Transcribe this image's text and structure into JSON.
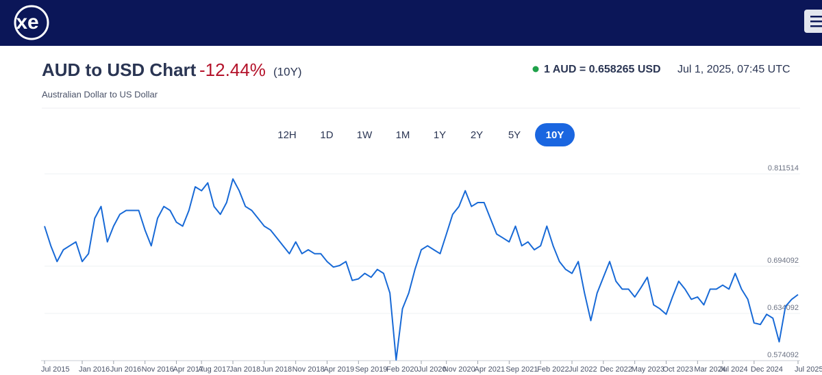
{
  "header": {
    "logo": "xe"
  },
  "title": "AUD to USD Chart",
  "change": "-12.44%",
  "period": "(10Y)",
  "subtitle": "Australian Dollar to US Dollar",
  "rate": "1 AUD = 0.658265 USD",
  "timestamp": "Jul 1, 2025, 07:45 UTC",
  "tabs": [
    {
      "label": "12H"
    },
    {
      "label": "1D"
    },
    {
      "label": "1W"
    },
    {
      "label": "1M"
    },
    {
      "label": "1Y"
    },
    {
      "label": "2Y"
    },
    {
      "label": "5Y"
    },
    {
      "label": "10Y",
      "active": true
    }
  ],
  "chart_data": {
    "type": "line",
    "color": "#1769d6",
    "grid": true,
    "x": [
      "Jul 2015",
      null,
      null,
      null,
      null,
      null,
      "Jan 2016",
      null,
      null,
      null,
      null,
      "Jun 2016",
      null,
      null,
      null,
      null,
      "Nov 2016",
      null,
      null,
      null,
      null,
      "Apr 2017",
      null,
      null,
      null,
      "Aug 2017",
      null,
      null,
      null,
      null,
      "Jan 2018",
      null,
      null,
      null,
      null,
      "Jun 2018",
      null,
      null,
      null,
      null,
      "Nov 2018",
      null,
      null,
      null,
      null,
      "Apr 2019",
      null,
      null,
      null,
      null,
      "Sep 2019",
      null,
      null,
      null,
      null,
      "Feb 2020",
      null,
      null,
      null,
      null,
      "Jul 2020",
      null,
      null,
      null,
      "Nov 2020",
      null,
      null,
      null,
      null,
      "Apr 2021",
      null,
      null,
      null,
      null,
      "Sep 2021",
      null,
      null,
      null,
      null,
      "Feb 2022",
      null,
      null,
      null,
      null,
      "Jul 2022",
      null,
      null,
      null,
      null,
      "Dec 2022",
      null,
      null,
      null,
      null,
      "May 2023",
      null,
      null,
      null,
      null,
      "Oct 2023",
      null,
      null,
      null,
      null,
      "Mar 2024",
      null,
      null,
      null,
      "Jul 2024",
      null,
      null,
      null,
      null,
      "Dec 2024",
      null,
      null,
      null,
      null,
      null,
      null,
      "Jul 2025"
    ],
    "values": [
      0.745,
      0.72,
      0.7,
      0.715,
      0.72,
      0.725,
      0.7,
      0.71,
      0.755,
      0.77,
      0.725,
      0.745,
      0.76,
      0.765,
      0.765,
      0.765,
      0.74,
      0.72,
      0.755,
      0.77,
      0.765,
      0.75,
      0.745,
      0.765,
      0.795,
      0.79,
      0.8,
      0.77,
      0.76,
      0.775,
      0.805,
      0.79,
      0.77,
      0.765,
      0.755,
      0.745,
      0.74,
      0.73,
      0.72,
      0.71,
      0.725,
      0.71,
      0.715,
      0.71,
      0.71,
      0.7,
      0.693,
      0.695,
      0.7,
      0.676,
      0.678,
      0.685,
      0.68,
      0.69,
      0.685,
      0.66,
      0.575,
      0.64,
      0.66,
      0.69,
      0.715,
      0.72,
      0.715,
      0.71,
      0.735,
      0.76,
      0.77,
      0.79,
      0.77,
      0.775,
      0.775,
      0.755,
      0.735,
      0.73,
      0.725,
      0.745,
      0.72,
      0.725,
      0.715,
      0.72,
      0.745,
      0.72,
      0.7,
      0.69,
      0.685,
      0.7,
      0.66,
      0.625,
      0.66,
      0.68,
      0.7,
      0.675,
      0.665,
      0.665,
      0.655,
      0.667,
      0.68,
      0.645,
      0.64,
      0.633,
      0.655,
      0.675,
      0.665,
      0.652,
      0.655,
      0.645,
      0.665,
      0.665,
      0.67,
      0.665,
      0.685,
      0.665,
      0.652,
      0.622,
      0.62,
      0.633,
      0.628,
      0.598,
      0.643,
      0.652,
      0.658
    ],
    "ylim": [
      0.574092,
      0.811514
    ],
    "yticks": [
      0.811514,
      0.694092,
      0.634092,
      0.574092
    ]
  }
}
